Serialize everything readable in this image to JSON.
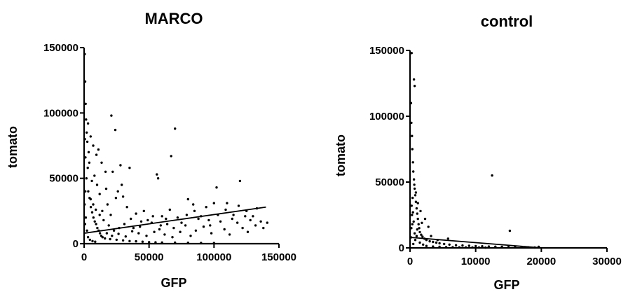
{
  "chart_data": [
    {
      "type": "scatter",
      "title": "MARCO",
      "xlabel": "GFP",
      "ylabel": "tomato",
      "xlim": [
        0,
        150000
      ],
      "ylim": [
        0,
        150000
      ],
      "xticks": [
        "0",
        "50000",
        "100000",
        "150000"
      ],
      "yticks": [
        "0",
        "50000",
        "100000",
        "150000"
      ],
      "fit_line": {
        "x": [
          0,
          140000
        ],
        "y": [
          8000,
          28000
        ]
      },
      "points": [
        [
          500,
          145000
        ],
        [
          800,
          124000
        ],
        [
          1200,
          107000
        ],
        [
          21000,
          98000
        ],
        [
          24000,
          87000
        ],
        [
          3000,
          92000
        ],
        [
          5000,
          82000
        ],
        [
          70000,
          88000
        ],
        [
          67000,
          67000
        ],
        [
          7000,
          75000
        ],
        [
          11000,
          72000
        ],
        [
          35000,
          58000
        ],
        [
          28000,
          60000
        ],
        [
          22000,
          55000
        ],
        [
          56000,
          53000
        ],
        [
          57000,
          50000
        ],
        [
          120000,
          48000
        ],
        [
          102000,
          43000
        ],
        [
          17000,
          42000
        ],
        [
          26000,
          40000
        ],
        [
          30000,
          36000
        ],
        [
          12000,
          38000
        ],
        [
          80000,
          34000
        ],
        [
          84000,
          30000
        ],
        [
          100000,
          31000
        ],
        [
          94000,
          28000
        ],
        [
          110000,
          31000
        ],
        [
          125000,
          25000
        ],
        [
          115000,
          22000
        ],
        [
          130000,
          21000
        ],
        [
          66000,
          26000
        ],
        [
          46000,
          25000
        ],
        [
          40000,
          23000
        ],
        [
          60000,
          21000
        ],
        [
          72000,
          20000
        ],
        [
          88000,
          19000
        ],
        [
          96000,
          18000
        ],
        [
          105000,
          17000
        ],
        [
          118000,
          16000
        ],
        [
          128000,
          18000
        ],
        [
          136000,
          17000
        ],
        [
          141000,
          16000
        ],
        [
          132000,
          14000
        ],
        [
          122000,
          12000
        ],
        [
          108000,
          11000
        ],
        [
          92000,
          13000
        ],
        [
          78000,
          14000
        ],
        [
          64000,
          15000
        ],
        [
          52000,
          16000
        ],
        [
          44000,
          17000
        ],
        [
          36000,
          19000
        ],
        [
          31000,
          15000
        ],
        [
          27000,
          12000
        ],
        [
          23000,
          10000
        ],
        [
          19000,
          14000
        ],
        [
          15000,
          18000
        ],
        [
          12000,
          22000
        ],
        [
          9000,
          26000
        ],
        [
          7000,
          30000
        ],
        [
          5000,
          34000
        ],
        [
          14000,
          25000
        ],
        [
          18000,
          30000
        ],
        [
          10000,
          45000
        ],
        [
          8000,
          52000
        ],
        [
          6000,
          48000
        ],
        [
          4000,
          62000
        ],
        [
          3500,
          70000
        ],
        [
          2500,
          78000
        ],
        [
          2000,
          85000
        ],
        [
          1500,
          95000
        ],
        [
          3200,
          40000
        ],
        [
          4200,
          35000
        ],
        [
          5200,
          28000
        ],
        [
          6200,
          24000
        ],
        [
          7200,
          20000
        ],
        [
          8200,
          17000
        ],
        [
          9200,
          15000
        ],
        [
          10200,
          12000
        ],
        [
          11200,
          10000
        ],
        [
          12200,
          8000
        ],
        [
          13200,
          6000
        ],
        [
          14200,
          5000
        ],
        [
          16000,
          4000
        ],
        [
          20000,
          3500
        ],
        [
          25000,
          3000
        ],
        [
          30000,
          2500
        ],
        [
          35000,
          2000
        ],
        [
          40000,
          1800
        ],
        [
          45000,
          1500
        ],
        [
          50000,
          1200
        ],
        [
          55000,
          1000
        ],
        [
          60000,
          900
        ],
        [
          70000,
          800
        ],
        [
          80000,
          700
        ],
        [
          90000,
          600
        ],
        [
          100000,
          500
        ],
        [
          20500,
          22000
        ],
        [
          33000,
          28000
        ],
        [
          38000,
          12000
        ],
        [
          42000,
          8000
        ],
        [
          48000,
          6000
        ],
        [
          54000,
          9000
        ],
        [
          58000,
          11000
        ],
        [
          62000,
          7000
        ],
        [
          68000,
          5000
        ],
        [
          74000,
          9000
        ],
        [
          82000,
          6000
        ],
        [
          86000,
          10000
        ],
        [
          98000,
          8000
        ],
        [
          112000,
          7000
        ],
        [
          126000,
          9000
        ],
        [
          138000,
          12000
        ],
        [
          24500,
          35000
        ],
        [
          29000,
          45000
        ],
        [
          16500,
          55000
        ],
        [
          13500,
          62000
        ],
        [
          9500,
          68000
        ],
        [
          2800,
          58000
        ],
        [
          1800,
          50000
        ],
        [
          1000,
          66000
        ],
        [
          600,
          80000
        ],
        [
          900,
          40000
        ],
        [
          400,
          30000
        ],
        [
          1300,
          20000
        ],
        [
          700,
          15000
        ],
        [
          2200,
          10000
        ],
        [
          3000,
          5000
        ],
        [
          4500,
          3000
        ],
        [
          6500,
          2000
        ],
        [
          8500,
          1500
        ],
        [
          17500,
          8000
        ],
        [
          21500,
          6000
        ],
        [
          26500,
          7500
        ],
        [
          32000,
          5500
        ],
        [
          37000,
          9500
        ],
        [
          43000,
          13000
        ],
        [
          49000,
          18000
        ],
        [
          53000,
          21000
        ],
        [
          59000,
          14000
        ],
        [
          63000,
          19000
        ],
        [
          69000,
          12000
        ],
        [
          75000,
          16000
        ],
        [
          79000,
          22000
        ],
        [
          85000,
          25000
        ],
        [
          90000,
          21000
        ],
        [
          97000,
          14000
        ],
        [
          103000,
          22000
        ],
        [
          109000,
          26000
        ],
        [
          114000,
          19000
        ],
        [
          119000,
          29000
        ],
        [
          124000,
          21000
        ],
        [
          133000,
          27000
        ]
      ]
    },
    {
      "type": "scatter",
      "title": "control",
      "xlabel": "GFP",
      "ylabel": "tomato",
      "xlim": [
        0,
        30000
      ],
      "ylim": [
        0,
        150000
      ],
      "xticks": [
        "0",
        "10000",
        "20000",
        "30000"
      ],
      "yticks": [
        "0",
        "50000",
        "100000",
        "150000"
      ],
      "fit_line": {
        "x": [
          0,
          20000
        ],
        "y": [
          8000,
          0
        ]
      },
      "points": [
        [
          250,
          148000
        ],
        [
          600,
          128000
        ],
        [
          700,
          123000
        ],
        [
          150,
          110000
        ],
        [
          200,
          95000
        ],
        [
          300,
          85000
        ],
        [
          350,
          75000
        ],
        [
          450,
          65000
        ],
        [
          500,
          58000
        ],
        [
          600,
          52000
        ],
        [
          700,
          45000
        ],
        [
          800,
          40000
        ],
        [
          900,
          35000
        ],
        [
          1000,
          30000
        ],
        [
          1100,
          26000
        ],
        [
          1200,
          22000
        ],
        [
          1300,
          18000
        ],
        [
          1400,
          15000
        ],
        [
          1500,
          12000
        ],
        [
          1700,
          10000
        ],
        [
          1900,
          8500
        ],
        [
          2200,
          7000
        ],
        [
          2500,
          6000
        ],
        [
          3000,
          5000
        ],
        [
          3500,
          4500
        ],
        [
          4000,
          4000
        ],
        [
          4500,
          3500
        ],
        [
          5200,
          3000
        ],
        [
          6000,
          2500
        ],
        [
          7000,
          2000
        ],
        [
          8000,
          1800
        ],
        [
          9000,
          1600
        ],
        [
          10000,
          1400
        ],
        [
          11000,
          1200
        ],
        [
          12000,
          1000
        ],
        [
          13000,
          900
        ],
        [
          14000,
          800
        ],
        [
          15000,
          700
        ],
        [
          16000,
          600
        ],
        [
          17000,
          500
        ],
        [
          18000,
          400
        ],
        [
          19000,
          300
        ],
        [
          19600,
          800
        ],
        [
          12500,
          55000
        ],
        [
          15200,
          13000
        ],
        [
          5800,
          7000
        ],
        [
          2800,
          16000
        ],
        [
          2300,
          22000
        ],
        [
          1600,
          28000
        ],
        [
          1200,
          34000
        ],
        [
          900,
          42000
        ],
        [
          650,
          48000
        ],
        [
          400,
          38000
        ],
        [
          300,
          25000
        ],
        [
          200,
          15000
        ],
        [
          150,
          8000
        ],
        [
          500,
          3000
        ],
        [
          800,
          6000
        ],
        [
          1000,
          9000
        ],
        [
          1500,
          4000
        ],
        [
          2000,
          2500
        ],
        [
          2500,
          1500
        ],
        [
          3500,
          1000
        ],
        [
          4500,
          800
        ],
        [
          5500,
          600
        ],
        [
          6500,
          500
        ],
        [
          7500,
          400
        ],
        [
          8500,
          350
        ],
        [
          9500,
          300
        ],
        [
          10500,
          250
        ],
        [
          11500,
          200
        ],
        [
          3200,
          9000
        ],
        [
          4200,
          6000
        ],
        [
          1800,
          19000
        ],
        [
          1100,
          14000
        ],
        [
          700,
          11000
        ],
        [
          350,
          18000
        ],
        [
          250,
          32000
        ],
        [
          450,
          27000
        ],
        [
          550,
          20000
        ]
      ]
    }
  ]
}
